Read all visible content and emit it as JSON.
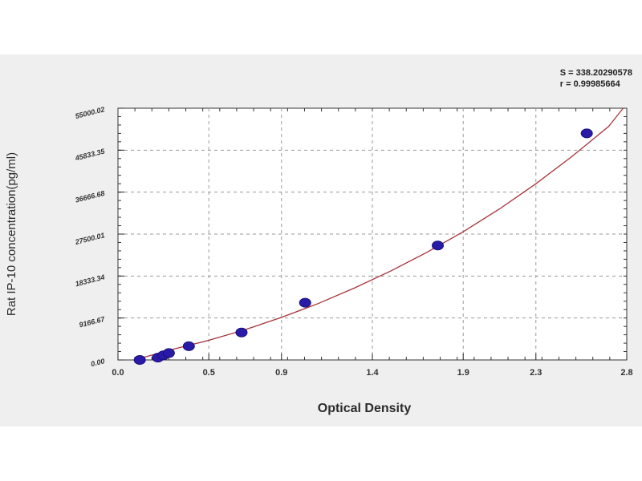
{
  "stats": {
    "line1": "S = 338.20290578",
    "line2": "r = 0.99985664"
  },
  "chart_data": {
    "type": "scatter",
    "xlabel": "Optical Density",
    "ylabel": "Rat IP-10 concentration(pg/ml)",
    "xlim": [
      0,
      2.8
    ],
    "ylim": [
      0,
      55000.02
    ],
    "x_ticks": [
      0.0,
      0.5,
      0.9,
      1.4,
      1.9,
      2.3,
      2.8
    ],
    "x_tick_labels": [
      "0.0",
      "0.5",
      "0.9",
      "1.4",
      "1.9",
      "2.3",
      "2.8"
    ],
    "y_ticks": [
      0,
      9166.67,
      18333.34,
      27500.01,
      36666.68,
      45833.35,
      55000.02
    ],
    "y_tick_labels": [
      "0.00",
      "9166.67",
      "18333.34",
      "27500.01",
      "36666.68",
      "45833.35",
      "55000.02"
    ],
    "grid": true,
    "series": [
      {
        "x": [
          0.12,
          0.22,
          0.25,
          0.28,
          0.39,
          0.68,
          1.03,
          1.76,
          2.58
        ],
        "y": [
          0,
          500,
          1000,
          1500,
          3000,
          6000,
          12500,
          25000,
          49500
        ]
      }
    ],
    "fit_curve": {
      "x": [
        0.1,
        0.3,
        0.5,
        0.7,
        0.9,
        1.1,
        1.3,
        1.5,
        1.7,
        1.9,
        2.1,
        2.3,
        2.5,
        2.7,
        2.78
      ],
      "y": [
        100,
        2300,
        4300,
        6600,
        9300,
        12300,
        15700,
        19400,
        23500,
        28000,
        33000,
        38500,
        44500,
        51000,
        55000
      ]
    },
    "colors": {
      "points": "#2a1aa8",
      "curve": "#a8343a",
      "grid": "#9a9a9a",
      "plot_background": "#ffffff",
      "frame_background": "#efefef"
    }
  }
}
